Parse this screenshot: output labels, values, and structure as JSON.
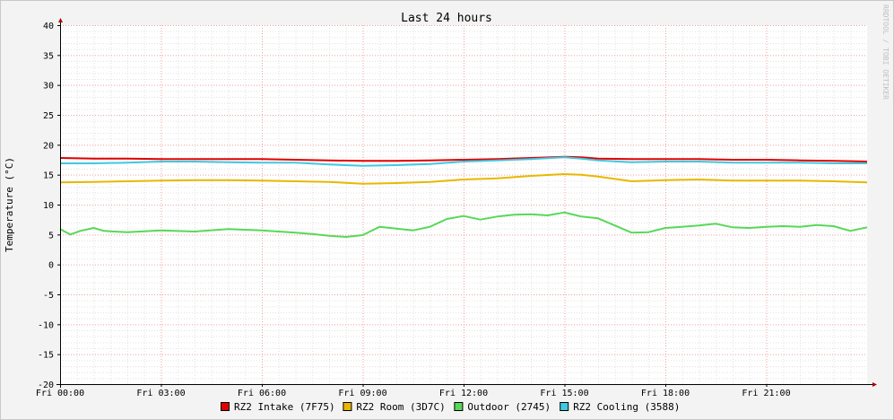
{
  "chart_data": {
    "type": "line",
    "title": "Last 24 hours",
    "ylabel": "Temperature (°C)",
    "watermark": "RRDTOOL / TOBI OETIKER",
    "ylim": [
      -20,
      40
    ],
    "ytick_step": 5,
    "x_ticks": [
      "Fri 00:00",
      "Fri 03:00",
      "Fri 06:00",
      "Fri 09:00",
      "Fri 12:00",
      "Fri 15:00",
      "Fri 18:00",
      "Fri 21:00"
    ],
    "x_range_hours": [
      0,
      24
    ],
    "series": [
      {
        "name": "RZ2 Intake (7F75)",
        "color": "#e00000",
        "x": [
          0,
          1,
          2,
          3,
          4,
          5,
          6,
          7,
          8,
          9,
          10,
          11,
          12,
          13,
          14,
          15,
          15.5,
          16,
          17,
          18,
          19,
          20,
          21,
          22,
          23,
          24
        ],
        "values": [
          17.8,
          17.7,
          17.7,
          17.6,
          17.6,
          17.6,
          17.6,
          17.5,
          17.4,
          17.3,
          17.3,
          17.4,
          17.5,
          17.6,
          17.8,
          18.0,
          17.9,
          17.7,
          17.6,
          17.6,
          17.6,
          17.5,
          17.5,
          17.4,
          17.3,
          17.2
        ]
      },
      {
        "name": "RZ2 Room (3D7C)",
        "color": "#e8b800",
        "x": [
          0,
          1,
          2,
          3,
          4,
          5,
          6,
          7,
          8,
          9,
          10,
          11,
          12,
          13,
          14,
          15,
          15.5,
          16,
          17,
          18,
          19,
          20,
          21,
          22,
          23,
          24
        ],
        "values": [
          13.7,
          13.8,
          13.9,
          14.0,
          14.1,
          14.1,
          14.0,
          13.9,
          13.8,
          13.5,
          13.6,
          13.8,
          14.2,
          14.4,
          14.8,
          15.1,
          15.0,
          14.7,
          13.9,
          14.1,
          14.2,
          14.0,
          14.0,
          14.0,
          13.9,
          13.7
        ]
      },
      {
        "name": "Outdoor (2745)",
        "color": "#58d858",
        "x": [
          0,
          0.3,
          0.6,
          1,
          1.3,
          1.6,
          2,
          3,
          4,
          5,
          6,
          7,
          7.5,
          8,
          8.5,
          9,
          9.5,
          10,
          10.5,
          11,
          11.5,
          12,
          12.5,
          13,
          13.5,
          14,
          14.5,
          15,
          15.5,
          16,
          16.5,
          17,
          17.5,
          18,
          18.5,
          19,
          19.5,
          20,
          20.5,
          21,
          21.5,
          22,
          22.5,
          23,
          23.5,
          24
        ],
        "values": [
          5.9,
          5.0,
          5.6,
          6.1,
          5.6,
          5.5,
          5.4,
          5.7,
          5.5,
          5.9,
          5.7,
          5.3,
          5.1,
          4.8,
          4.6,
          4.9,
          6.3,
          6.0,
          5.7,
          6.3,
          7.6,
          8.1,
          7.5,
          8.0,
          8.3,
          8.4,
          8.2,
          8.7,
          8.0,
          7.7,
          6.5,
          5.3,
          5.4,
          6.1,
          6.3,
          6.5,
          6.8,
          6.2,
          6.1,
          6.3,
          6.4,
          6.3,
          6.6,
          6.4,
          5.6,
          6.2
        ]
      },
      {
        "name": "RZ2 Cooling (3588)",
        "color": "#40c8e0",
        "x": [
          0,
          1,
          2,
          3,
          4,
          5,
          6,
          7,
          8,
          9,
          10,
          11,
          12,
          13,
          14,
          15,
          15.5,
          16,
          17,
          18,
          19,
          20,
          21,
          22,
          23,
          24
        ],
        "values": [
          16.9,
          16.9,
          17.0,
          17.2,
          17.2,
          17.1,
          17.0,
          17.0,
          16.7,
          16.5,
          16.6,
          16.8,
          17.2,
          17.4,
          17.6,
          17.9,
          17.7,
          17.4,
          17.1,
          17.2,
          17.2,
          17.0,
          17.0,
          17.0,
          16.9,
          16.9
        ]
      }
    ],
    "grid": true,
    "legend_position": "bottom"
  }
}
